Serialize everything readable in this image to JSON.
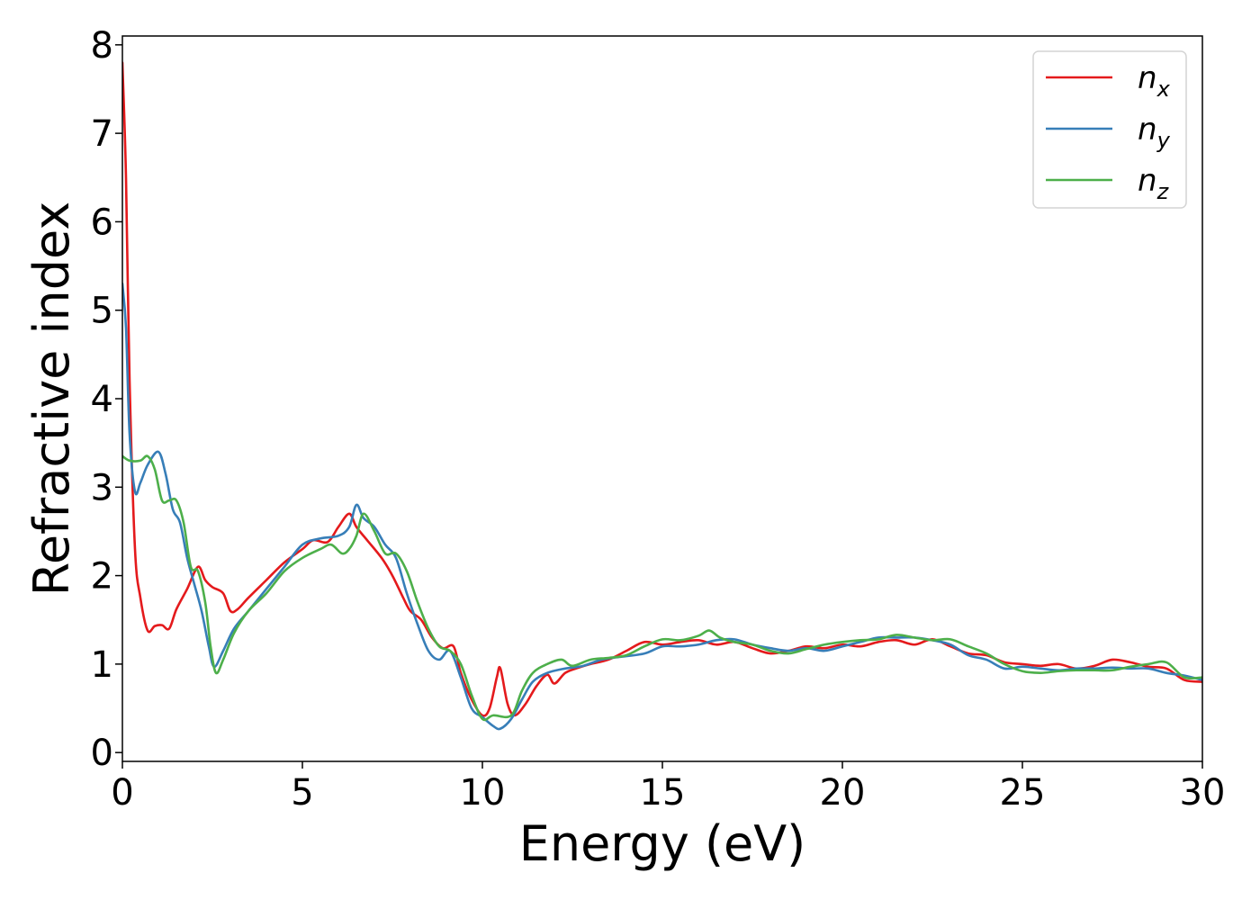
{
  "chart_data": {
    "type": "line",
    "xlabel": "Energy (eV)",
    "ylabel": "Refractive index",
    "xlim": [
      0,
      30
    ],
    "ylim": [
      -0.1,
      8.1
    ],
    "xticks": [
      0,
      5,
      10,
      15,
      20,
      25,
      30
    ],
    "yticks": [
      0,
      1,
      2,
      3,
      4,
      5,
      6,
      7,
      8
    ],
    "grid": false,
    "legend_position": "top-right",
    "series": [
      {
        "name": "n",
        "subscript": "x",
        "color": "#e41a1c",
        "points": [
          [
            0,
            7.8
          ],
          [
            0.1,
            6.5
          ],
          [
            0.2,
            4.2
          ],
          [
            0.35,
            2.3
          ],
          [
            0.5,
            1.75
          ],
          [
            0.7,
            1.38
          ],
          [
            0.9,
            1.43
          ],
          [
            1.1,
            1.44
          ],
          [
            1.3,
            1.4
          ],
          [
            1.5,
            1.62
          ],
          [
            1.8,
            1.85
          ],
          [
            2.1,
            2.1
          ],
          [
            2.3,
            1.95
          ],
          [
            2.5,
            1.87
          ],
          [
            2.8,
            1.8
          ],
          [
            3.0,
            1.6
          ],
          [
            3.2,
            1.62
          ],
          [
            3.5,
            1.75
          ],
          [
            4.0,
            1.95
          ],
          [
            4.5,
            2.15
          ],
          [
            5.0,
            2.3
          ],
          [
            5.3,
            2.4
          ],
          [
            5.7,
            2.38
          ],
          [
            6.0,
            2.55
          ],
          [
            6.3,
            2.7
          ],
          [
            6.5,
            2.55
          ],
          [
            6.8,
            2.4
          ],
          [
            7.2,
            2.2
          ],
          [
            7.5,
            2.0
          ],
          [
            7.8,
            1.75
          ],
          [
            8.0,
            1.6
          ],
          [
            8.3,
            1.5
          ],
          [
            8.6,
            1.3
          ],
          [
            8.9,
            1.18
          ],
          [
            9.2,
            1.2
          ],
          [
            9.4,
            0.9
          ],
          [
            9.7,
            0.6
          ],
          [
            10.0,
            0.42
          ],
          [
            10.2,
            0.5
          ],
          [
            10.4,
            0.85
          ],
          [
            10.5,
            0.95
          ],
          [
            10.7,
            0.55
          ],
          [
            10.9,
            0.42
          ],
          [
            11.2,
            0.55
          ],
          [
            11.5,
            0.75
          ],
          [
            11.8,
            0.88
          ],
          [
            12.0,
            0.78
          ],
          [
            12.3,
            0.9
          ],
          [
            12.6,
            0.95
          ],
          [
            13.0,
            1.0
          ],
          [
            13.5,
            1.05
          ],
          [
            14.0,
            1.15
          ],
          [
            14.5,
            1.25
          ],
          [
            15.0,
            1.22
          ],
          [
            15.5,
            1.25
          ],
          [
            16.0,
            1.27
          ],
          [
            16.5,
            1.22
          ],
          [
            17.0,
            1.25
          ],
          [
            17.5,
            1.18
          ],
          [
            18.0,
            1.12
          ],
          [
            18.5,
            1.15
          ],
          [
            19.0,
            1.2
          ],
          [
            19.5,
            1.18
          ],
          [
            20.0,
            1.22
          ],
          [
            20.5,
            1.2
          ],
          [
            21.0,
            1.25
          ],
          [
            21.5,
            1.27
          ],
          [
            22.0,
            1.22
          ],
          [
            22.5,
            1.28
          ],
          [
            23.0,
            1.2
          ],
          [
            23.5,
            1.12
          ],
          [
            24.0,
            1.1
          ],
          [
            24.5,
            1.02
          ],
          [
            25.0,
            1.0
          ],
          [
            25.5,
            0.98
          ],
          [
            26.0,
            1.0
          ],
          [
            26.5,
            0.95
          ],
          [
            27.0,
            0.98
          ],
          [
            27.5,
            1.05
          ],
          [
            28.0,
            1.02
          ],
          [
            28.5,
            0.97
          ],
          [
            29.0,
            0.95
          ],
          [
            29.5,
            0.82
          ],
          [
            30.0,
            0.8
          ]
        ]
      },
      {
        "name": "n",
        "subscript": "y",
        "color": "#377eb8",
        "points": [
          [
            0,
            5.3
          ],
          [
            0.1,
            4.8
          ],
          [
            0.2,
            3.6
          ],
          [
            0.35,
            2.95
          ],
          [
            0.5,
            3.05
          ],
          [
            0.7,
            3.25
          ],
          [
            1.0,
            3.4
          ],
          [
            1.2,
            3.15
          ],
          [
            1.4,
            2.75
          ],
          [
            1.6,
            2.6
          ],
          [
            1.8,
            2.2
          ],
          [
            2.0,
            1.9
          ],
          [
            2.2,
            1.6
          ],
          [
            2.4,
            1.2
          ],
          [
            2.55,
            0.97
          ],
          [
            2.8,
            1.15
          ],
          [
            3.1,
            1.4
          ],
          [
            3.5,
            1.6
          ],
          [
            4.0,
            1.85
          ],
          [
            4.5,
            2.1
          ],
          [
            5.0,
            2.35
          ],
          [
            5.5,
            2.42
          ],
          [
            6.0,
            2.45
          ],
          [
            6.3,
            2.55
          ],
          [
            6.5,
            2.8
          ],
          [
            6.7,
            2.65
          ],
          [
            7.0,
            2.55
          ],
          [
            7.3,
            2.35
          ],
          [
            7.6,
            2.2
          ],
          [
            7.9,
            1.8
          ],
          [
            8.2,
            1.45
          ],
          [
            8.5,
            1.15
          ],
          [
            8.8,
            1.05
          ],
          [
            9.1,
            1.15
          ],
          [
            9.4,
            0.85
          ],
          [
            9.7,
            0.5
          ],
          [
            10.0,
            0.4
          ],
          [
            10.3,
            0.3
          ],
          [
            10.5,
            0.27
          ],
          [
            10.8,
            0.38
          ],
          [
            11.1,
            0.6
          ],
          [
            11.4,
            0.8
          ],
          [
            11.8,
            0.9
          ],
          [
            12.3,
            0.95
          ],
          [
            12.8,
            0.98
          ],
          [
            13.3,
            1.05
          ],
          [
            13.8,
            1.08
          ],
          [
            14.5,
            1.12
          ],
          [
            15.0,
            1.2
          ],
          [
            15.5,
            1.2
          ],
          [
            16.0,
            1.22
          ],
          [
            16.5,
            1.27
          ],
          [
            17.0,
            1.28
          ],
          [
            17.5,
            1.22
          ],
          [
            18.0,
            1.18
          ],
          [
            18.5,
            1.15
          ],
          [
            19.0,
            1.18
          ],
          [
            19.5,
            1.15
          ],
          [
            20.0,
            1.2
          ],
          [
            20.5,
            1.25
          ],
          [
            21.0,
            1.3
          ],
          [
            21.5,
            1.3
          ],
          [
            22.0,
            1.3
          ],
          [
            22.5,
            1.27
          ],
          [
            23.0,
            1.22
          ],
          [
            23.5,
            1.1
          ],
          [
            24.0,
            1.05
          ],
          [
            24.5,
            0.95
          ],
          [
            25.0,
            0.97
          ],
          [
            25.5,
            0.95
          ],
          [
            26.0,
            0.93
          ],
          [
            26.5,
            0.95
          ],
          [
            27.0,
            0.95
          ],
          [
            27.5,
            0.96
          ],
          [
            28.0,
            0.95
          ],
          [
            28.5,
            0.95
          ],
          [
            29.0,
            0.9
          ],
          [
            29.5,
            0.87
          ],
          [
            30.0,
            0.82
          ]
        ]
      },
      {
        "name": "n",
        "subscript": "z",
        "color": "#4daf4a",
        "points": [
          [
            0,
            3.35
          ],
          [
            0.2,
            3.3
          ],
          [
            0.5,
            3.3
          ],
          [
            0.7,
            3.35
          ],
          [
            0.9,
            3.2
          ],
          [
            1.1,
            2.85
          ],
          [
            1.3,
            2.85
          ],
          [
            1.5,
            2.85
          ],
          [
            1.7,
            2.6
          ],
          [
            1.9,
            2.1
          ],
          [
            2.1,
            2.05
          ],
          [
            2.3,
            1.7
          ],
          [
            2.45,
            1.2
          ],
          [
            2.6,
            0.9
          ],
          [
            2.8,
            1.05
          ],
          [
            3.1,
            1.35
          ],
          [
            3.5,
            1.6
          ],
          [
            4.0,
            1.8
          ],
          [
            4.5,
            2.05
          ],
          [
            5.0,
            2.2
          ],
          [
            5.5,
            2.3
          ],
          [
            5.8,
            2.35
          ],
          [
            6.1,
            2.25
          ],
          [
            6.3,
            2.3
          ],
          [
            6.5,
            2.45
          ],
          [
            6.7,
            2.7
          ],
          [
            7.0,
            2.5
          ],
          [
            7.3,
            2.25
          ],
          [
            7.6,
            2.25
          ],
          [
            7.9,
            2.05
          ],
          [
            8.2,
            1.7
          ],
          [
            8.5,
            1.4
          ],
          [
            8.8,
            1.2
          ],
          [
            9.1,
            1.15
          ],
          [
            9.4,
            1.0
          ],
          [
            9.7,
            0.65
          ],
          [
            10.0,
            0.38
          ],
          [
            10.3,
            0.42
          ],
          [
            10.8,
            0.42
          ],
          [
            11.1,
            0.7
          ],
          [
            11.4,
            0.9
          ],
          [
            11.8,
            1.0
          ],
          [
            12.2,
            1.05
          ],
          [
            12.5,
            0.98
          ],
          [
            13.0,
            1.05
          ],
          [
            13.5,
            1.07
          ],
          [
            14.0,
            1.1
          ],
          [
            14.5,
            1.2
          ],
          [
            15.0,
            1.28
          ],
          [
            15.5,
            1.27
          ],
          [
            16.0,
            1.32
          ],
          [
            16.3,
            1.38
          ],
          [
            16.6,
            1.3
          ],
          [
            17.0,
            1.25
          ],
          [
            17.5,
            1.22
          ],
          [
            18.0,
            1.15
          ],
          [
            18.5,
            1.12
          ],
          [
            19.0,
            1.17
          ],
          [
            19.5,
            1.22
          ],
          [
            20.0,
            1.25
          ],
          [
            20.5,
            1.27
          ],
          [
            21.0,
            1.28
          ],
          [
            21.5,
            1.33
          ],
          [
            22.0,
            1.3
          ],
          [
            22.5,
            1.27
          ],
          [
            23.0,
            1.28
          ],
          [
            23.5,
            1.2
          ],
          [
            24.0,
            1.12
          ],
          [
            24.5,
            1.0
          ],
          [
            25.0,
            0.92
          ],
          [
            25.5,
            0.9
          ],
          [
            26.0,
            0.92
          ],
          [
            26.5,
            0.93
          ],
          [
            27.0,
            0.93
          ],
          [
            27.5,
            0.93
          ],
          [
            28.0,
            0.97
          ],
          [
            28.5,
            1.0
          ],
          [
            29.0,
            1.02
          ],
          [
            29.5,
            0.85
          ],
          [
            30.0,
            0.85
          ]
        ]
      }
    ]
  }
}
